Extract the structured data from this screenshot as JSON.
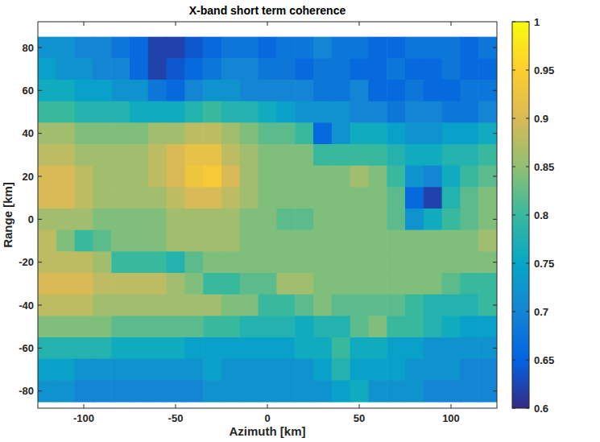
{
  "chart_data": {
    "type": "heatmap",
    "title": "X-band short term coherence",
    "x_label": "Azimuth [km]",
    "y_label": "Range [km]",
    "xlim": [
      -125,
      125
    ],
    "ylim": [
      -88,
      92
    ],
    "xticks": [
      -100,
      -50,
      0,
      50,
      100
    ],
    "yticks": [
      -80,
      -60,
      -40,
      -20,
      0,
      20,
      40,
      60,
      80
    ],
    "zlim": [
      0.6,
      1
    ],
    "zticks": [
      0.6,
      0.65,
      0.7,
      0.75,
      0.8,
      0.85,
      0.9,
      0.95,
      1
    ],
    "grid": false,
    "x": [
      -120,
      -110,
      -100,
      -90,
      -80,
      -70,
      -60,
      -50,
      -40,
      -30,
      -20,
      -10,
      0,
      10,
      20,
      30,
      40,
      50,
      60,
      70,
      80,
      90,
      100,
      110,
      120
    ],
    "y": [
      80,
      70,
      60,
      50,
      40,
      30,
      20,
      10,
      0,
      -10,
      -20,
      -30,
      -40,
      -50,
      -60,
      -70,
      -80
    ],
    "values": [
      [
        0.72,
        0.72,
        0.7,
        0.7,
        0.68,
        0.66,
        0.62,
        0.62,
        0.64,
        0.66,
        0.68,
        0.68,
        0.66,
        0.68,
        0.68,
        0.7,
        0.68,
        0.68,
        0.66,
        0.66,
        0.68,
        0.68,
        0.68,
        0.66,
        0.68
      ],
      [
        0.74,
        0.72,
        0.72,
        0.7,
        0.7,
        0.66,
        0.62,
        0.64,
        0.66,
        0.68,
        0.7,
        0.7,
        0.68,
        0.68,
        0.66,
        0.68,
        0.68,
        0.66,
        0.66,
        0.68,
        0.66,
        0.66,
        0.68,
        0.66,
        0.66
      ],
      [
        0.76,
        0.76,
        0.74,
        0.74,
        0.72,
        0.72,
        0.68,
        0.66,
        0.7,
        0.72,
        0.72,
        0.7,
        0.7,
        0.7,
        0.7,
        0.68,
        0.68,
        0.7,
        0.66,
        0.66,
        0.68,
        0.66,
        0.66,
        0.68,
        0.68
      ],
      [
        0.8,
        0.8,
        0.78,
        0.78,
        0.78,
        0.76,
        0.76,
        0.76,
        0.78,
        0.8,
        0.78,
        0.78,
        0.76,
        0.74,
        0.72,
        0.72,
        0.72,
        0.7,
        0.7,
        0.68,
        0.7,
        0.7,
        0.68,
        0.68,
        0.7
      ],
      [
        0.86,
        0.86,
        0.84,
        0.84,
        0.84,
        0.84,
        0.86,
        0.86,
        0.88,
        0.88,
        0.86,
        0.84,
        0.82,
        0.82,
        0.8,
        0.66,
        0.72,
        0.76,
        0.76,
        0.74,
        0.72,
        0.72,
        0.74,
        0.74,
        0.76
      ],
      [
        0.88,
        0.88,
        0.86,
        0.86,
        0.86,
        0.86,
        0.88,
        0.9,
        0.92,
        0.92,
        0.88,
        0.86,
        0.84,
        0.84,
        0.84,
        0.8,
        0.8,
        0.8,
        0.8,
        0.78,
        0.76,
        0.76,
        0.78,
        0.78,
        0.8
      ],
      [
        0.9,
        0.9,
        0.88,
        0.86,
        0.86,
        0.86,
        0.88,
        0.9,
        0.93,
        0.94,
        0.9,
        0.86,
        0.84,
        0.84,
        0.84,
        0.84,
        0.84,
        0.86,
        0.84,
        0.8,
        0.72,
        0.7,
        0.76,
        0.8,
        0.82
      ],
      [
        0.9,
        0.9,
        0.88,
        0.86,
        0.86,
        0.86,
        0.86,
        0.88,
        0.9,
        0.9,
        0.88,
        0.86,
        0.84,
        0.84,
        0.84,
        0.84,
        0.84,
        0.84,
        0.84,
        0.82,
        0.66,
        0.62,
        0.78,
        0.82,
        0.84
      ],
      [
        0.86,
        0.86,
        0.86,
        0.84,
        0.84,
        0.84,
        0.84,
        0.86,
        0.86,
        0.86,
        0.86,
        0.84,
        0.84,
        0.82,
        0.82,
        0.84,
        0.84,
        0.84,
        0.84,
        0.82,
        0.72,
        0.76,
        0.8,
        0.82,
        0.84
      ],
      [
        0.88,
        0.84,
        0.8,
        0.82,
        0.84,
        0.84,
        0.84,
        0.86,
        0.86,
        0.86,
        0.86,
        0.84,
        0.84,
        0.84,
        0.84,
        0.84,
        0.84,
        0.84,
        0.84,
        0.84,
        0.84,
        0.84,
        0.84,
        0.84,
        0.86
      ],
      [
        0.88,
        0.88,
        0.88,
        0.86,
        0.8,
        0.8,
        0.8,
        0.78,
        0.82,
        0.84,
        0.84,
        0.84,
        0.84,
        0.84,
        0.84,
        0.84,
        0.84,
        0.84,
        0.84,
        0.84,
        0.84,
        0.84,
        0.84,
        0.84,
        0.84
      ],
      [
        0.9,
        0.9,
        0.9,
        0.88,
        0.88,
        0.88,
        0.88,
        0.86,
        0.84,
        0.8,
        0.8,
        0.82,
        0.82,
        0.86,
        0.86,
        0.84,
        0.84,
        0.84,
        0.84,
        0.84,
        0.84,
        0.84,
        0.82,
        0.8,
        0.8
      ],
      [
        0.88,
        0.88,
        0.88,
        0.86,
        0.86,
        0.86,
        0.86,
        0.86,
        0.86,
        0.86,
        0.84,
        0.84,
        0.8,
        0.8,
        0.82,
        0.84,
        0.82,
        0.82,
        0.82,
        0.82,
        0.8,
        0.78,
        0.78,
        0.78,
        0.8
      ],
      [
        0.84,
        0.84,
        0.84,
        0.84,
        0.82,
        0.82,
        0.82,
        0.82,
        0.82,
        0.8,
        0.8,
        0.78,
        0.78,
        0.78,
        0.76,
        0.78,
        0.78,
        0.82,
        0.84,
        0.8,
        0.8,
        0.78,
        0.76,
        0.74,
        0.74
      ],
      [
        0.78,
        0.78,
        0.78,
        0.78,
        0.76,
        0.76,
        0.76,
        0.76,
        0.74,
        0.74,
        0.74,
        0.74,
        0.74,
        0.74,
        0.76,
        0.76,
        0.8,
        0.76,
        0.76,
        0.74,
        0.74,
        0.72,
        0.72,
        0.72,
        0.72
      ],
      [
        0.74,
        0.74,
        0.72,
        0.72,
        0.72,
        0.72,
        0.72,
        0.72,
        0.72,
        0.74,
        0.72,
        0.72,
        0.72,
        0.72,
        0.72,
        0.74,
        0.78,
        0.74,
        0.74,
        0.74,
        0.72,
        0.72,
        0.72,
        0.7,
        0.7
      ],
      [
        0.72,
        0.72,
        0.7,
        0.7,
        0.7,
        0.7,
        0.7,
        0.7,
        0.7,
        0.72,
        0.72,
        0.72,
        0.72,
        0.72,
        0.72,
        0.72,
        0.74,
        0.76,
        0.72,
        0.72,
        0.72,
        0.7,
        0.7,
        0.7,
        0.7
      ]
    ]
  }
}
